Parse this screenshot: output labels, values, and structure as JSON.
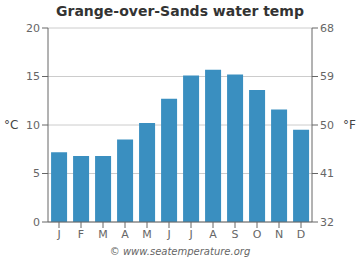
{
  "chart_data": {
    "type": "bar",
    "title": "Grange-over-Sands water temp",
    "categories": [
      "J",
      "F",
      "M",
      "A",
      "M",
      "J",
      "J",
      "A",
      "S",
      "O",
      "N",
      "D"
    ],
    "values": [
      7.2,
      6.8,
      6.8,
      8.5,
      10.2,
      12.7,
      15.1,
      15.7,
      15.2,
      13.6,
      11.6,
      9.5
    ],
    "color": "#3a8fc0",
    "ylim": [
      0,
      20
    ],
    "yticks": [
      0,
      5,
      10,
      15,
      20
    ],
    "ylabel": "°C",
    "y2lim": [
      32,
      68
    ],
    "y2ticks": [
      32,
      41,
      50,
      59,
      68
    ],
    "y2label": "°F",
    "grid": true,
    "annotations": [
      "© www.seatemperature.org"
    ]
  }
}
